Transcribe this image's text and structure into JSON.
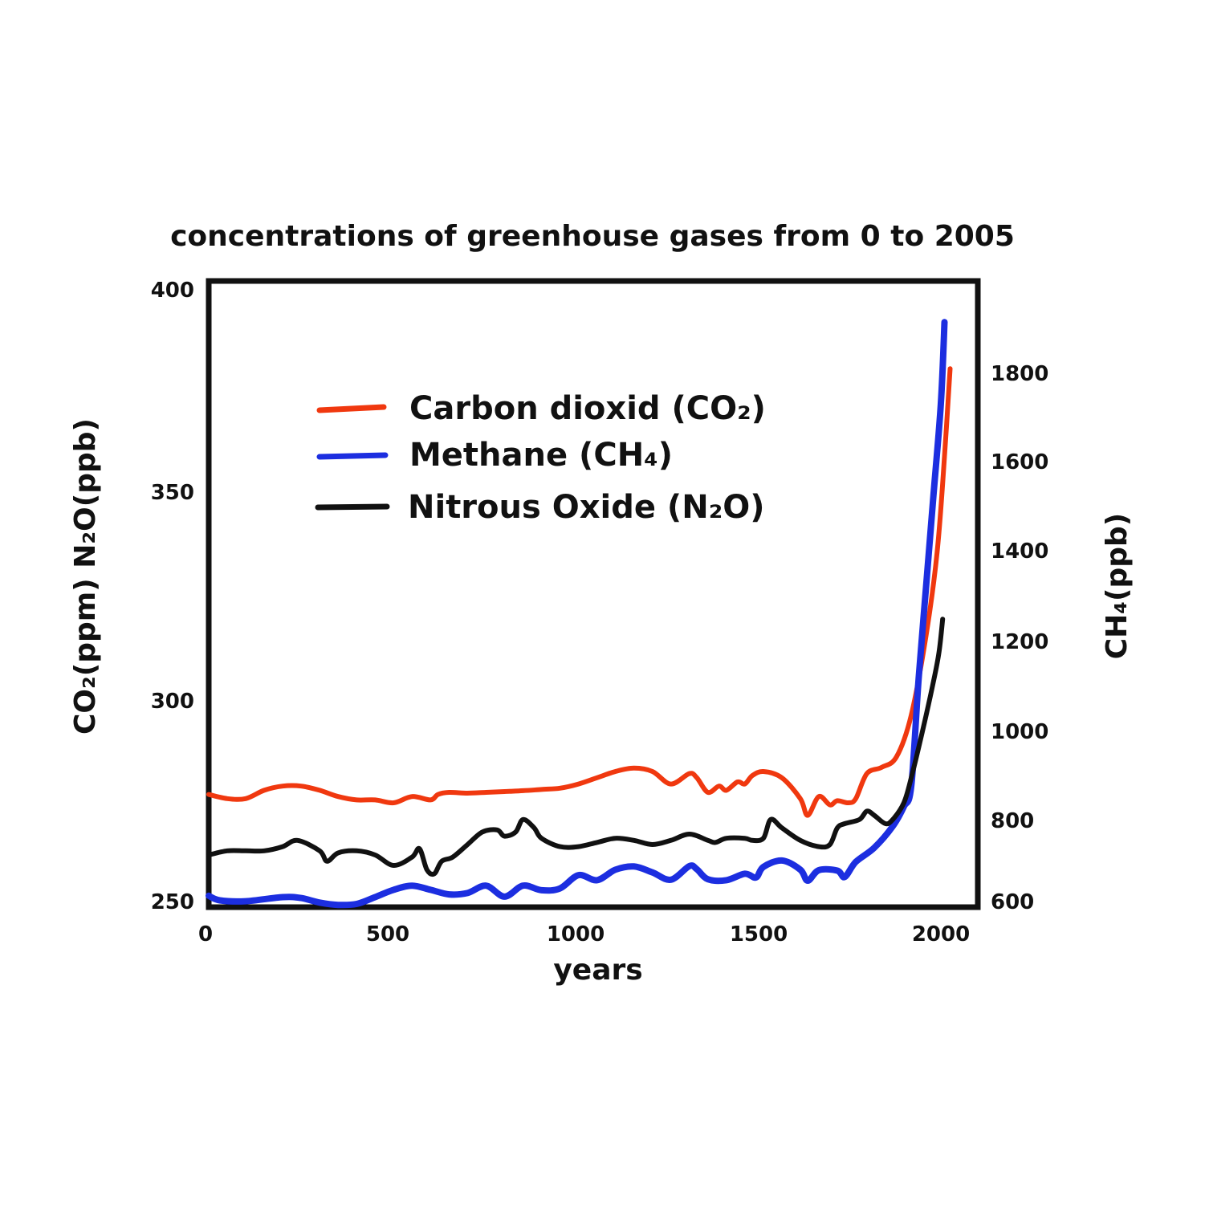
{
  "chart_data": {
    "type": "line",
    "title": "concentrations of greenhouse gases from 0 to 2005",
    "xlabel": "years",
    "ylabel_left": "CO₂(ppm) N₂O(ppb)",
    "ylabel_right": "CH₄(ppb)",
    "xlim": [
      0,
      2080
    ],
    "ylim_left": [
      250,
      400
    ],
    "ylim_right": [
      600,
      1970
    ],
    "x_ticks": [
      "0",
      "500",
      "1000",
      "1500",
      "2000"
    ],
    "y_ticks_left": [
      "400",
      "350",
      "300",
      "250"
    ],
    "y_ticks_right": [
      "1800",
      "1600",
      "1400",
      "1200",
      "1000",
      "800",
      "600"
    ],
    "grid": false,
    "legend_position": "top-left",
    "series": [
      {
        "name": "Carbon dioxid (CO₂)",
        "axis": "left",
        "color": "#f0380f",
        "points": [
          [
            0,
            277
          ],
          [
            50,
            276
          ],
          [
            100,
            276
          ],
          [
            150,
            278
          ],
          [
            200,
            279
          ],
          [
            250,
            279
          ],
          [
            300,
            278
          ],
          [
            350,
            276.5
          ],
          [
            400,
            275.7
          ],
          [
            450,
            275.7
          ],
          [
            500,
            275
          ],
          [
            550,
            276.5
          ],
          [
            600,
            275.7
          ],
          [
            620,
            277
          ],
          [
            650,
            277.5
          ],
          [
            700,
            277.3
          ],
          [
            750,
            277.5
          ],
          [
            800,
            277.7
          ],
          [
            850,
            277.9
          ],
          [
            900,
            278.2
          ],
          [
            950,
            278.5
          ],
          [
            1000,
            279.5
          ],
          [
            1050,
            281
          ],
          [
            1100,
            282.5
          ],
          [
            1150,
            283.3
          ],
          [
            1200,
            282.5
          ],
          [
            1250,
            279.5
          ],
          [
            1300,
            282
          ],
          [
            1320,
            281
          ],
          [
            1350,
            277.5
          ],
          [
            1380,
            279
          ],
          [
            1400,
            278
          ],
          [
            1430,
            280
          ],
          [
            1450,
            279.5
          ],
          [
            1470,
            281.5
          ],
          [
            1500,
            282.5
          ],
          [
            1550,
            281
          ],
          [
            1600,
            276
          ],
          [
            1620,
            272
          ],
          [
            1650,
            276.5
          ],
          [
            1680,
            274.5
          ],
          [
            1700,
            275.5
          ],
          [
            1730,
            275
          ],
          [
            1750,
            276
          ],
          [
            1780,
            282
          ],
          [
            1820,
            283.5
          ],
          [
            1860,
            286
          ],
          [
            1900,
            296
          ],
          [
            1940,
            315
          ],
          [
            1970,
            335
          ],
          [
            1990,
            358
          ],
          [
            2005,
            379
          ]
        ]
      },
      {
        "name": "Methane (CH₄)",
        "axis": "right",
        "color": "#1c2ee0",
        "points": [
          [
            0,
            625
          ],
          [
            30,
            615
          ],
          [
            100,
            613
          ],
          [
            200,
            622
          ],
          [
            250,
            620
          ],
          [
            300,
            610
          ],
          [
            350,
            605
          ],
          [
            400,
            607
          ],
          [
            450,
            622
          ],
          [
            500,
            638
          ],
          [
            550,
            647
          ],
          [
            600,
            638
          ],
          [
            650,
            628
          ],
          [
            700,
            631
          ],
          [
            750,
            647
          ],
          [
            800,
            623
          ],
          [
            850,
            647
          ],
          [
            900,
            637
          ],
          [
            950,
            641
          ],
          [
            1000,
            670
          ],
          [
            1050,
            659
          ],
          [
            1100,
            682
          ],
          [
            1150,
            689
          ],
          [
            1200,
            676
          ],
          [
            1250,
            660
          ],
          [
            1300,
            690
          ],
          [
            1320,
            683
          ],
          [
            1350,
            661
          ],
          [
            1400,
            659
          ],
          [
            1450,
            673
          ],
          [
            1480,
            665
          ],
          [
            1500,
            688
          ],
          [
            1550,
            702
          ],
          [
            1600,
            682
          ],
          [
            1620,
            658
          ],
          [
            1650,
            681
          ],
          [
            1700,
            680
          ],
          [
            1720,
            666
          ],
          [
            1750,
            699
          ],
          [
            1800,
            730
          ],
          [
            1850,
            777
          ],
          [
            1880,
            820
          ],
          [
            1900,
            865
          ],
          [
            1920,
            1100
          ],
          [
            1940,
            1300
          ],
          [
            1960,
            1500
          ],
          [
            1980,
            1700
          ],
          [
            1990,
            1880
          ]
        ]
      },
      {
        "name": "Nitrous Oxide (N₂O)",
        "axis": "left",
        "color": "#111111",
        "points": [
          [
            0,
            262.5
          ],
          [
            50,
            263.5
          ],
          [
            100,
            263.5
          ],
          [
            150,
            263.5
          ],
          [
            200,
            264.5
          ],
          [
            240,
            266
          ],
          [
            300,
            263.5
          ],
          [
            320,
            261
          ],
          [
            350,
            263
          ],
          [
            400,
            263.5
          ],
          [
            450,
            262.5
          ],
          [
            500,
            260
          ],
          [
            550,
            262
          ],
          [
            570,
            264
          ],
          [
            590,
            259
          ],
          [
            610,
            258
          ],
          [
            630,
            261
          ],
          [
            660,
            262
          ],
          [
            700,
            265
          ],
          [
            740,
            268
          ],
          [
            780,
            268.5
          ],
          [
            800,
            267
          ],
          [
            830,
            268
          ],
          [
            850,
            271
          ],
          [
            880,
            269
          ],
          [
            900,
            266.5
          ],
          [
            950,
            264.5
          ],
          [
            1000,
            264.5
          ],
          [
            1050,
            265.5
          ],
          [
            1100,
            266.5
          ],
          [
            1150,
            266
          ],
          [
            1200,
            265
          ],
          [
            1250,
            266
          ],
          [
            1300,
            267.5
          ],
          [
            1350,
            266
          ],
          [
            1370,
            265.5
          ],
          [
            1400,
            266.5
          ],
          [
            1450,
            266.5
          ],
          [
            1470,
            266
          ],
          [
            1500,
            266.5
          ],
          [
            1520,
            271
          ],
          [
            1550,
            269
          ],
          [
            1600,
            266
          ],
          [
            1650,
            264.5
          ],
          [
            1680,
            265
          ],
          [
            1700,
            269
          ],
          [
            1720,
            270
          ],
          [
            1760,
            271
          ],
          [
            1780,
            273
          ],
          [
            1800,
            272
          ],
          [
            1830,
            270
          ],
          [
            1850,
            271
          ],
          [
            1880,
            275
          ],
          [
            1900,
            281
          ],
          [
            1930,
            292
          ],
          [
            1960,
            304
          ],
          [
            1975,
            311
          ],
          [
            1985,
            319
          ]
        ]
      }
    ]
  }
}
